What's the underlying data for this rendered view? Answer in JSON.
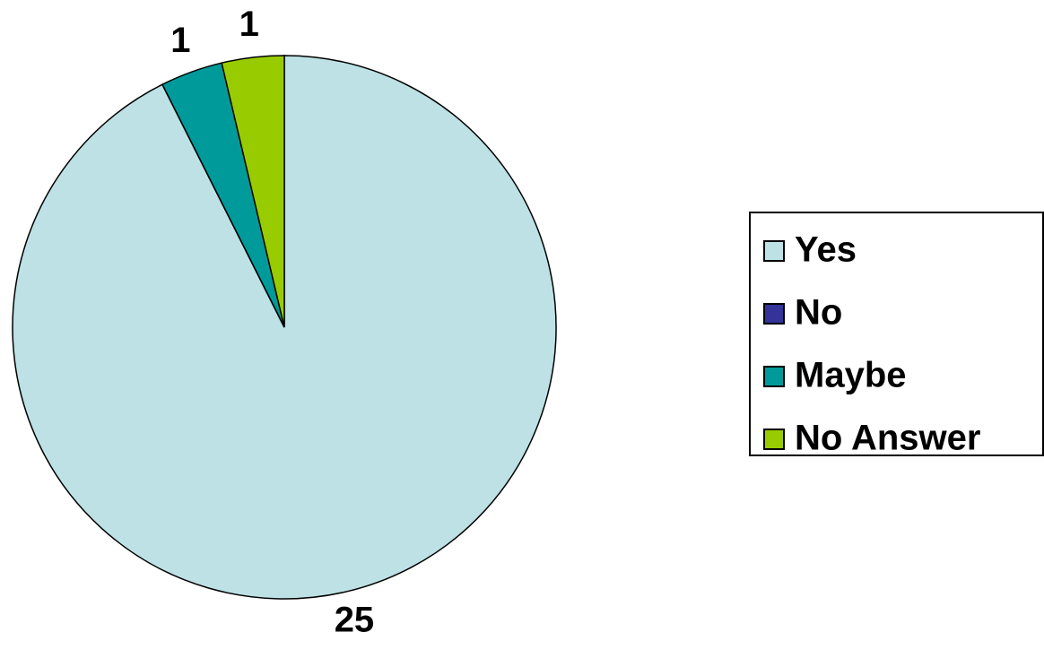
{
  "chart_data": {
    "type": "pie",
    "categories": [
      "Yes",
      "No",
      "Maybe",
      "No Answer"
    ],
    "values": [
      25,
      0,
      1,
      1
    ],
    "colors": [
      "#bde1e4",
      "#333399",
      "#009a9a",
      "#99cc00"
    ],
    "legend": "right"
  }
}
